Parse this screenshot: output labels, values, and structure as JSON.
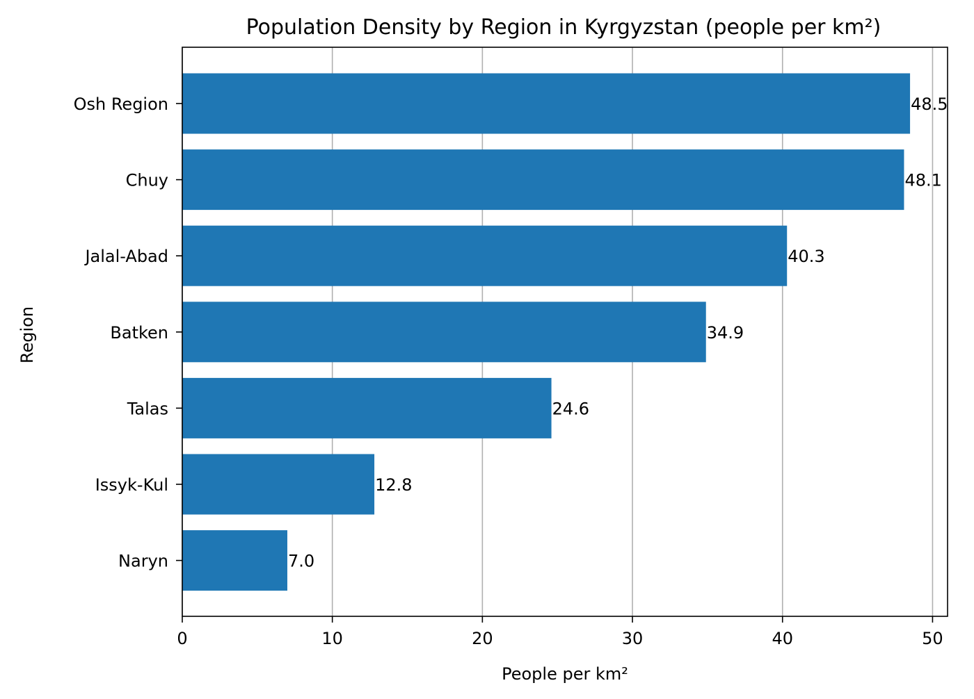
{
  "chart_data": {
    "type": "bar",
    "orientation": "horizontal",
    "title": "Population Density by Region in Kyrgyzstan (people per km²)",
    "xlabel": "People per km²",
    "ylabel": "Region",
    "categories": [
      "Osh Region",
      "Chuy",
      "Jalal-Abad",
      "Batken",
      "Talas",
      "Issyk-Kul",
      "Naryn"
    ],
    "values": [
      48.5,
      48.1,
      40.3,
      34.9,
      24.6,
      12.8,
      7.0
    ],
    "value_labels": [
      "48.5",
      "48.1",
      "40.3",
      "34.9",
      "24.6",
      "12.8",
      "7.0"
    ],
    "xlim": [
      0,
      51
    ],
    "xticks": [
      0,
      10,
      20,
      30,
      40,
      50
    ],
    "xtick_labels": [
      "0",
      "10",
      "20",
      "30",
      "40",
      "50"
    ],
    "grid": "x-major",
    "colors": {
      "bar": "#1f77b4",
      "grid": "#b0b0b0",
      "axis": "#000000"
    }
  }
}
